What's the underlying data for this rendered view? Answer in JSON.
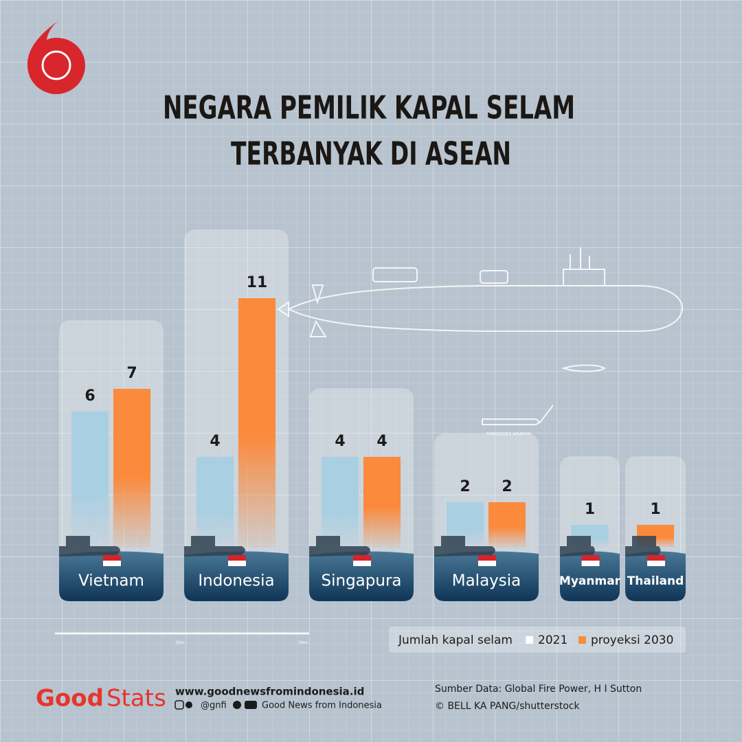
{
  "chart_data": {
    "type": "bar",
    "title": [
      "NEGARA PEMILIK KAPAL SELAM",
      "TERBANYAK DI ASEAN"
    ],
    "categories": [
      "Vietnam",
      "Indonesia",
      "Singapura",
      "Malaysia",
      "Myanmar",
      "Thailand"
    ],
    "series": [
      {
        "name": "2021",
        "color": "#a9cfe2",
        "values": [
          6,
          4,
          4,
          2,
          1,
          null
        ]
      },
      {
        "name": "proyeksi 2030",
        "color": "#fb8a3c",
        "values": [
          7,
          11,
          4,
          2,
          null,
          1
        ]
      }
    ],
    "legend_title": "Jumlah kapal selam",
    "ylim": [
      0,
      11
    ],
    "blueprint": {
      "label": "TORPEDOES WEAPON",
      "scale_labels": [
        "25m",
        "30m"
      ]
    },
    "footer": {
      "brand_1": "Good",
      "brand_2": "Stats",
      "website": "www.goodnewsfromindonesia.id",
      "handle": "@gnfi",
      "name": "Good News from Indonesia",
      "source": "Sumber Data: Global Fire Power, H I Sutton",
      "credit": "© BELL KA PANG/shutterstock"
    }
  }
}
